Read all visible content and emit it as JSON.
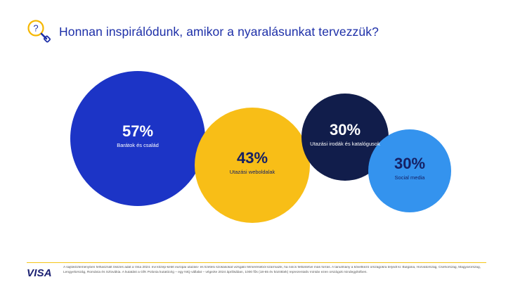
{
  "header": {
    "title": "Honnan inspirálódunk, amikor a nyaralásunkat tervezzük?",
    "icon": "question-magnifier-icon"
  },
  "chart_data": {
    "type": "bubble",
    "title": "Honnan inspirálódunk, amikor a nyaralásunkat tervezzük?",
    "unit": "%",
    "items": [
      {
        "label": "Barátok és család",
        "value": 57,
        "display": "57%",
        "color": "#1c34c6",
        "text_color": "#ffffff"
      },
      {
        "label": "Utazási weboldalak",
        "value": 43,
        "display": "43%",
        "color": "#f8be17",
        "text_color": "#152064"
      },
      {
        "label": "Utazási irodák és katalógusok",
        "value": 30,
        "display": "30%",
        "color": "#111d4b",
        "text_color": "#ffffff"
      },
      {
        "label": "Social media",
        "value": 30,
        "display": "30%",
        "color": "#3493ee",
        "text_color": "#152064"
      }
    ]
  },
  "footer": {
    "logo_text": "VISA",
    "footnote": "A sajtóközleményben felhasznált összes adat a Visa 2024. évi közép-kelet európai utazási- és fizetési szokásokat vizsgáló felméréséből származik, ha nincs feltüntetve más forrás. A tanulmány a következő országokra terjedt ki: Bulgária, Horvátország, Csehország, Magyarország, Lengyelország, Románia és Szlovákia. A kutatást a GfK Polonia kutatócég – egy NIQ vállalat – végezte 2024 áprilisában, 1000 fős (18-65 év közöttiek) reprezentatív mintán ezen országok mindegyikében."
  },
  "colors": {
    "title": "#1d2fa8",
    "divider": "#f5c518",
    "logo": "#1a1f71"
  }
}
